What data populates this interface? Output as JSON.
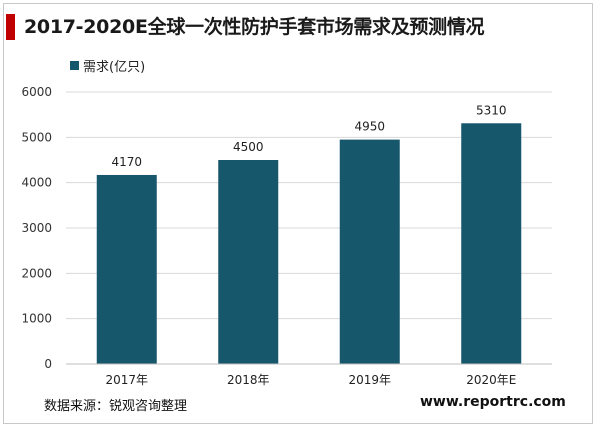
{
  "title": "2017-2020E全球一次性防护手套市场需求及预测情况",
  "source": "数据来源：锐观咨询整理",
  "website": "www.reportrc.com",
  "colors": {
    "bar": "#16576c",
    "accent": "#c00000",
    "grid": "#d9d9d9"
  },
  "chart_data": {
    "type": "bar",
    "categories": [
      "2017年",
      "2018年",
      "2019年",
      "2020年E"
    ],
    "series": [
      {
        "name": "需求(亿只)",
        "values": [
          4170,
          4500,
          4950,
          5310
        ]
      }
    ],
    "ylim": [
      0,
      6000
    ],
    "yticks": [
      0,
      1000,
      2000,
      3000,
      4000,
      5000,
      6000
    ],
    "grid": true,
    "legend": "top-left",
    "data_labels": true
  }
}
